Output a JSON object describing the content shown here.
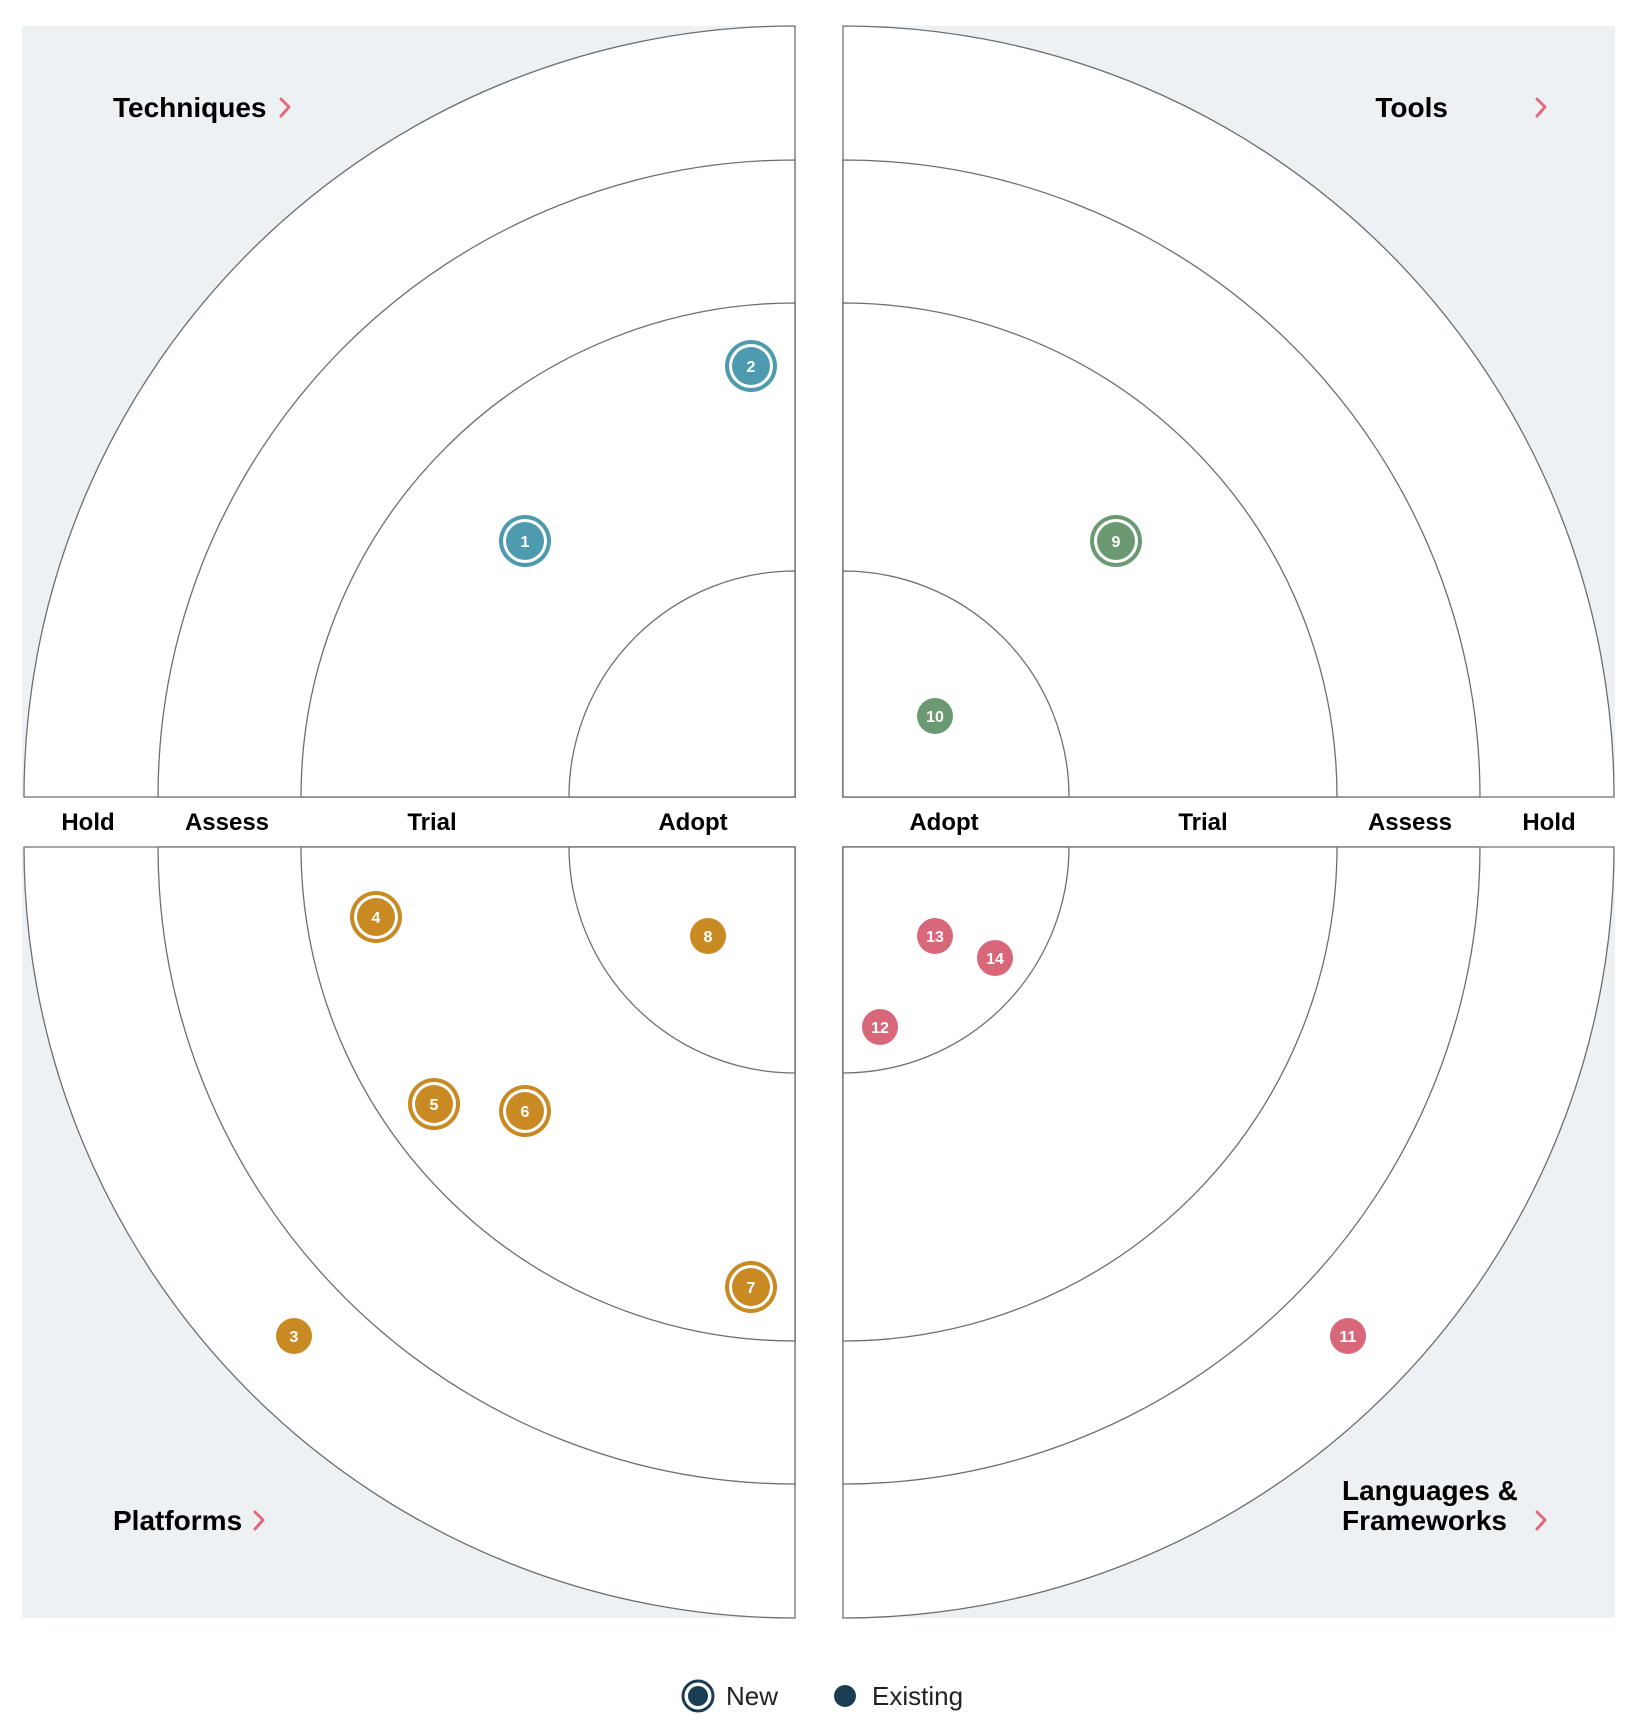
{
  "rings": [
    "Adopt",
    "Trial",
    "Assess",
    "Hold"
  ],
  "quadrants": [
    {
      "id": "techniques",
      "title": "Techniques",
      "color": "#4e9baf"
    },
    {
      "id": "tools",
      "title": "Tools",
      "color": "#6b9a72"
    },
    {
      "id": "platforms",
      "title": "Platforms",
      "color": "#c98a23"
    },
    {
      "id": "languages-frameworks",
      "title": "Languages &\nFrameworks",
      "title_lines": [
        "Languages &",
        "Frameworks"
      ],
      "color": "#d9677a"
    }
  ],
  "blips": [
    {
      "number": "1",
      "quadrant": "techniques",
      "ring": "Trial",
      "status": "new"
    },
    {
      "number": "2",
      "quadrant": "techniques",
      "ring": "Trial",
      "status": "new"
    },
    {
      "number": "3",
      "quadrant": "platforms",
      "ring": "Assess",
      "status": "existing"
    },
    {
      "number": "4",
      "quadrant": "platforms",
      "ring": "Trial",
      "status": "new"
    },
    {
      "number": "5",
      "quadrant": "platforms",
      "ring": "Trial",
      "status": "new"
    },
    {
      "number": "6",
      "quadrant": "platforms",
      "ring": "Trial",
      "status": "new"
    },
    {
      "number": "7",
      "quadrant": "platforms",
      "ring": "Trial",
      "status": "new"
    },
    {
      "number": "8",
      "quadrant": "platforms",
      "ring": "Adopt",
      "status": "existing"
    },
    {
      "number": "9",
      "quadrant": "tools",
      "ring": "Trial",
      "status": "new"
    },
    {
      "number": "10",
      "quadrant": "tools",
      "ring": "Adopt",
      "status": "existing"
    },
    {
      "number": "11",
      "quadrant": "languages-frameworks",
      "ring": "Assess",
      "status": "existing"
    },
    {
      "number": "12",
      "quadrant": "languages-frameworks",
      "ring": "Adopt",
      "status": "existing"
    },
    {
      "number": "13",
      "quadrant": "languages-frameworks",
      "ring": "Adopt",
      "status": "existing"
    },
    {
      "number": "14",
      "quadrant": "languages-frameworks",
      "ring": "Adopt",
      "status": "existing"
    }
  ],
  "legend": {
    "new_label": "New",
    "existing_label": "Existing",
    "color": "#1b3d53"
  }
}
